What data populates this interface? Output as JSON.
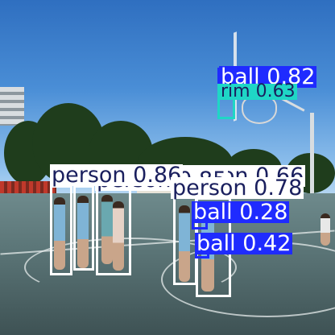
{
  "detections": [
    {
      "class_label": "ball",
      "confidence": "0.82",
      "kind": "ball"
    },
    {
      "class_label": "rim",
      "confidence": "0.63",
      "kind": "rim"
    },
    {
      "class_label": "person",
      "confidence": "0.86",
      "kind": "person"
    },
    {
      "class_label": "person",
      "confidence": "0.85",
      "kind": "person"
    },
    {
      "class_label": "person",
      "confidence": "0.66",
      "kind": "person"
    },
    {
      "class_label": "person",
      "confidence": "0.78",
      "kind": "person"
    },
    {
      "class_label": "ball",
      "confidence": "0.28",
      "kind": "ball"
    },
    {
      "class_label": "ball",
      "confidence": "0.42",
      "kind": "ball"
    }
  ],
  "colors": {
    "person": "#ffffff",
    "ball": "#1f2bff",
    "rim": "#1fd6c6"
  }
}
